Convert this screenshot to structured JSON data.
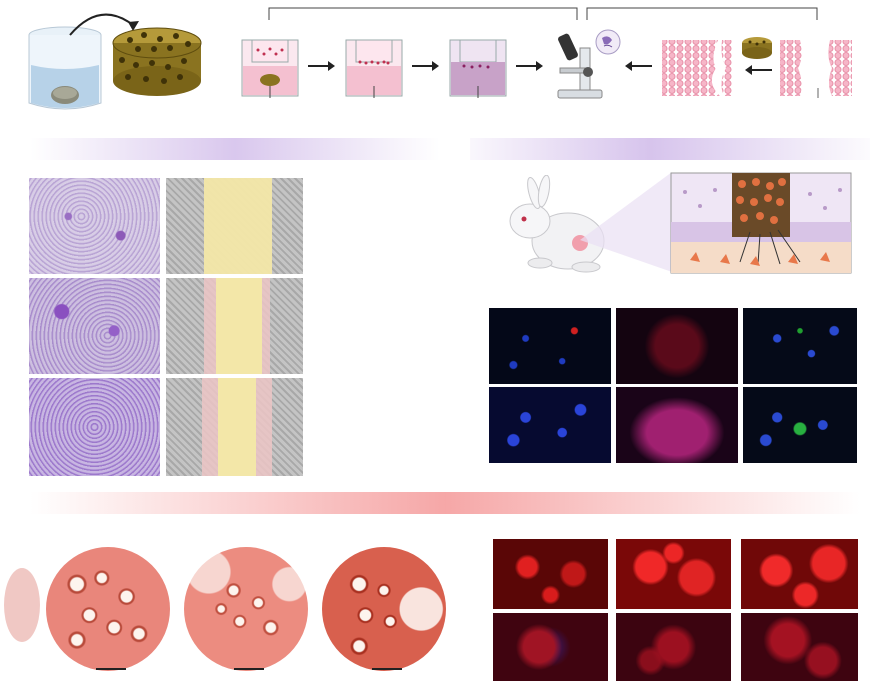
{
  "figure": {
    "panels": {
      "workflow": {
        "icons": [
          "beaker-icon",
          "scaffold-icon",
          "transwell-icon",
          "microscope-icon",
          "tissue-icon",
          "arrow-icon"
        ]
      },
      "band_colors": {
        "purple": "#c9b0e6",
        "red": "#f2a0a0"
      },
      "transwell_grid": {
        "rows": 3,
        "cols": 2
      },
      "rabbit_model": {
        "icons": [
          "rabbit-icon",
          "defect-icon",
          "cartilage-section-icon"
        ]
      },
      "fluorescence_grid": {
        "rows": 2,
        "cols": 3,
        "channels": [
          "blue",
          "red",
          "green"
        ]
      },
      "histology": {
        "count": 3,
        "stain_color": "#e9867b"
      },
      "red_fluorescence_grid": {
        "rows": 2,
        "cols": 3
      }
    }
  }
}
